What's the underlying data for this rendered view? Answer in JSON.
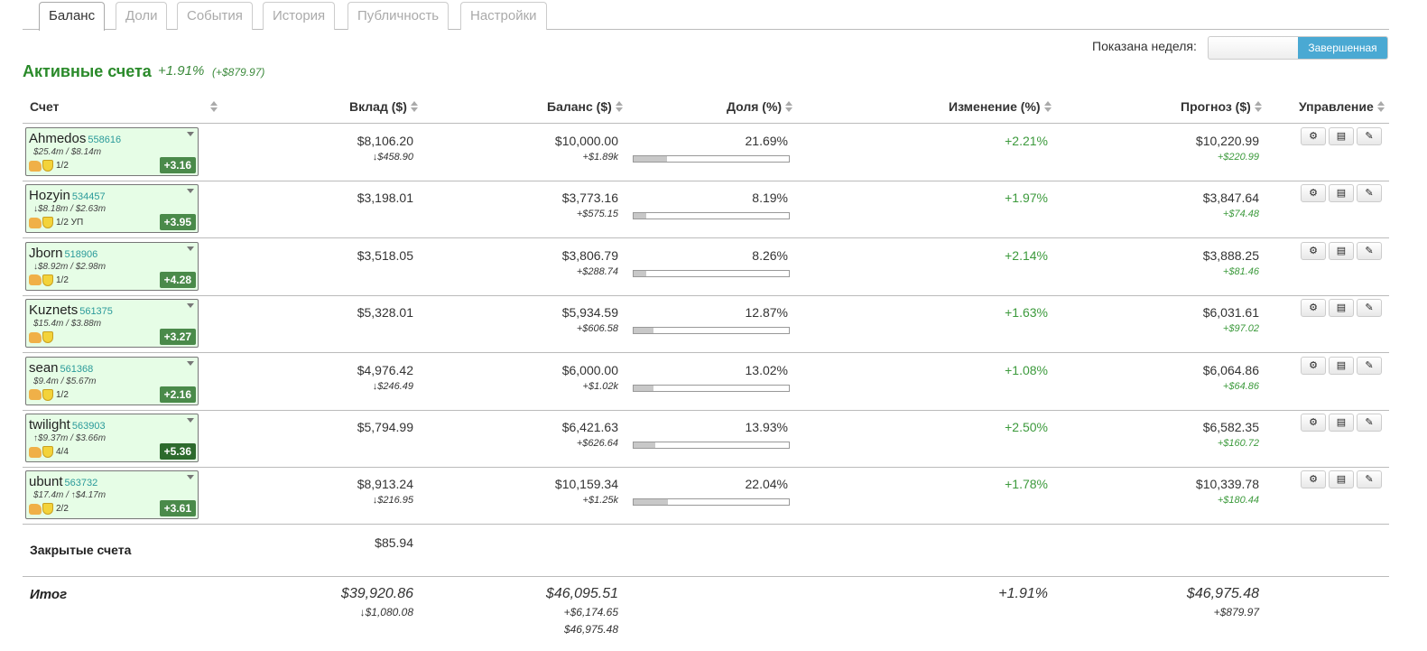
{
  "tabs": [
    "Баланс",
    "Доли",
    "События",
    "История",
    "Публичность",
    "Настройки"
  ],
  "week": {
    "label": "Показана неделя:",
    "selected": "Завершенная"
  },
  "section": {
    "title": "Активные счета",
    "pct": "+1.91%",
    "amount": "(+$879.97)"
  },
  "columns": {
    "account": "Счет",
    "deposit": "Вклад ($)",
    "balance": "Баланс ($)",
    "share": "Доля (%)",
    "change": "Изменение (%)",
    "forecast": "Прогноз ($)",
    "control": "Управление"
  },
  "rows": [
    {
      "name": "Ahmedos",
      "id": "558616",
      "stats": "$25.4m / $8.14m",
      "badge": "1/2",
      "score": "+3.16",
      "deposit": "$8,106.20",
      "deposit_sub": "↓$458.90",
      "balance": "$10,000.00",
      "balance_sub": "+$1.89k",
      "share": "21.69%",
      "share_value": 21.69,
      "change": "+2.21%",
      "forecast": "$10,220.99",
      "forecast_sub": "+$220.99"
    },
    {
      "name": "Hozyin",
      "id": "534457",
      "stats": "↓$8.18m / $2.63m",
      "badge": "1/2 УП",
      "score": "+3.95",
      "deposit": "$3,198.01",
      "deposit_sub": "",
      "balance": "$3,773.16",
      "balance_sub": "+$575.15",
      "share": "8.19%",
      "share_value": 8.19,
      "change": "+1.97%",
      "forecast": "$3,847.64",
      "forecast_sub": "+$74.48"
    },
    {
      "name": "Jborn",
      "id": "518906",
      "stats": "↓$8.92m / $2.98m",
      "badge": "1/2",
      "score": "+4.28",
      "deposit": "$3,518.05",
      "deposit_sub": "",
      "balance": "$3,806.79",
      "balance_sub": "+$288.74",
      "share": "8.26%",
      "share_value": 8.26,
      "change": "+2.14%",
      "forecast": "$3,888.25",
      "forecast_sub": "+$81.46"
    },
    {
      "name": "Kuznets",
      "id": "561375",
      "stats": "$15.4m / $3.88m",
      "badge": "",
      "score": "+3.27",
      "deposit": "$5,328.01",
      "deposit_sub": "",
      "balance": "$5,934.59",
      "balance_sub": "+$606.58",
      "share": "12.87%",
      "share_value": 12.87,
      "change": "+1.63%",
      "forecast": "$6,031.61",
      "forecast_sub": "+$97.02"
    },
    {
      "name": "sean",
      "id": "561368",
      "stats": "$9.4m / $5.67m",
      "badge": "1/2",
      "score": "+2.16",
      "deposit": "$4,976.42",
      "deposit_sub": "↓$246.49",
      "balance": "$6,000.00",
      "balance_sub": "+$1.02k",
      "share": "13.02%",
      "share_value": 13.02,
      "change": "+1.08%",
      "forecast": "$6,064.86",
      "forecast_sub": "+$64.86"
    },
    {
      "name": "twilight",
      "id": "563903",
      "stats": "↑$9.37m / $3.66m",
      "badge": "4/4",
      "score": "+5.36",
      "deposit": "$5,794.99",
      "deposit_sub": "",
      "balance": "$6,421.63",
      "balance_sub": "+$626.64",
      "share": "13.93%",
      "share_value": 13.93,
      "change": "+2.50%",
      "forecast": "$6,582.35",
      "forecast_sub": "+$160.72"
    },
    {
      "name": "ubunt",
      "id": "563732",
      "stats": "$17.4m / ↑$4.17m",
      "badge": "2/2",
      "score": "+3.61",
      "deposit": "$8,913.24",
      "deposit_sub": "↓$216.95",
      "balance": "$10,159.34",
      "balance_sub": "+$1.25k",
      "share": "22.04%",
      "share_value": 22.04,
      "change": "+1.78%",
      "forecast": "$10,339.78",
      "forecast_sub": "+$180.44"
    }
  ],
  "closed": {
    "label": "Закрытые счета",
    "deposit": "$85.94"
  },
  "total": {
    "label": "Итог",
    "deposit": "$39,920.86",
    "deposit_sub": "↓$1,080.08",
    "balance": "$46,095.51",
    "balance_sub": "+$6,174.65",
    "balance_sub2": "$46,975.48",
    "change": "+1.91%",
    "forecast": "$46,975.48",
    "forecast_sub": "+$879.97"
  },
  "control_icons": [
    "gear-icon",
    "list-icon",
    "pencil-icon"
  ]
}
